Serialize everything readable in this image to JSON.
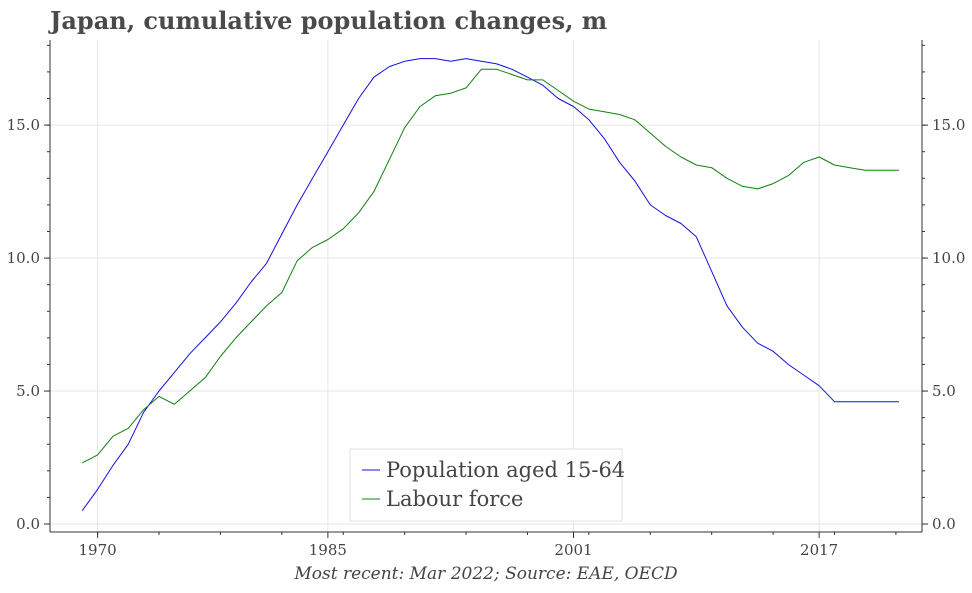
{
  "title": "Japan, cumulative population changes, m",
  "caption": "Most recent: Mar 2022; Source: EAE, OECD",
  "colors": {
    "population": "#1010e0",
    "labour": "#108010",
    "grid": "#e6e6e6",
    "axis": "#333333",
    "text": "#444444"
  },
  "chart_data": {
    "type": "line",
    "title": "Japan, cumulative population changes, m",
    "xlabel": "",
    "ylabel": "",
    "xlim": [
      1966.9,
      2023.7
    ],
    "ylim": [
      -0.3,
      18.2
    ],
    "x_ticks": [
      1970,
      1985,
      2001,
      2017
    ],
    "x_tick_labels": [
      "1970",
      "1985",
      "2001",
      "2017"
    ],
    "y_ticks": [
      0,
      5,
      10,
      15
    ],
    "y_tick_labels": [
      "0.0",
      "5.0",
      "10.0",
      "15.0"
    ],
    "right_axis_duplicate": true,
    "grid": true,
    "legend_position": "bottom-center",
    "series": [
      {
        "name": "Population aged 15-64",
        "color": "#1010e0",
        "x": [
          1969.0,
          1970.0,
          1971.0,
          1972.0,
          1973.0,
          1974.0,
          1975.0,
          1976.0,
          1977.0,
          1978.0,
          1979.0,
          1980.0,
          1981.0,
          1982.0,
          1983.0,
          1984.0,
          1985.0,
          1986.0,
          1987.0,
          1988.0,
          1989.0,
          1990.0,
          1991.0,
          1992.0,
          1993.0,
          1994.0,
          1995.0,
          1996.0,
          1997.0,
          1998.0,
          1999.0,
          2000.0,
          2001.0,
          2002.0,
          2003.0,
          2004.0,
          2005.0,
          2006.0,
          2007.0,
          2008.0,
          2009.0,
          2010.0,
          2011.0,
          2012.0,
          2013.0,
          2014.0,
          2015.0,
          2016.0,
          2017.0,
          2018.0,
          2019.0,
          2020.0,
          2021.0,
          2022.2
        ],
        "y": [
          0.5,
          1.3,
          2.2,
          3.0,
          4.2,
          5.0,
          5.7,
          6.4,
          7.0,
          7.6,
          8.3,
          9.1,
          9.8,
          10.9,
          12.0,
          13.0,
          14.0,
          15.0,
          16.0,
          16.8,
          17.2,
          17.4,
          17.5,
          17.5,
          17.4,
          17.5,
          17.4,
          17.3,
          17.1,
          16.8,
          16.5,
          16.0,
          15.7,
          15.2,
          14.5,
          13.6,
          12.9,
          12.0,
          11.6,
          11.3,
          10.8,
          9.5,
          8.2,
          7.4,
          6.8,
          6.5,
          6.0,
          5.6,
          5.2,
          4.6,
          4.6,
          4.6,
          4.6,
          4.6
        ]
      },
      {
        "name": "Labour force",
        "color": "#108010",
        "x": [
          1969.0,
          1970.0,
          1971.0,
          1972.0,
          1973.0,
          1974.0,
          1975.0,
          1976.0,
          1977.0,
          1978.0,
          1979.0,
          1980.0,
          1981.0,
          1982.0,
          1983.0,
          1984.0,
          1985.0,
          1986.0,
          1987.0,
          1988.0,
          1989.0,
          1990.0,
          1991.0,
          1992.0,
          1993.0,
          1994.0,
          1995.0,
          1996.0,
          1997.0,
          1998.0,
          1999.0,
          2000.0,
          2001.0,
          2002.0,
          2003.0,
          2004.0,
          2005.0,
          2006.0,
          2007.0,
          2008.0,
          2009.0,
          2010.0,
          2011.0,
          2012.0,
          2013.0,
          2014.0,
          2015.0,
          2016.0,
          2017.0,
          2018.0,
          2019.0,
          2020.0,
          2021.0,
          2022.2
        ],
        "y": [
          2.3,
          2.6,
          3.3,
          3.6,
          4.3,
          4.8,
          4.5,
          5.0,
          5.5,
          6.3,
          7.0,
          7.6,
          8.2,
          8.7,
          9.9,
          10.4,
          10.7,
          11.1,
          11.7,
          12.5,
          13.7,
          14.9,
          15.7,
          16.1,
          16.2,
          16.4,
          17.1,
          17.1,
          16.9,
          16.7,
          16.7,
          16.3,
          15.9,
          15.6,
          15.5,
          15.4,
          15.2,
          14.7,
          14.2,
          13.8,
          13.5,
          13.4,
          13.0,
          12.7,
          12.6,
          12.8,
          13.1,
          13.6,
          13.8,
          13.5,
          13.4,
          13.3,
          13.3,
          13.3
        ]
      }
    ]
  }
}
